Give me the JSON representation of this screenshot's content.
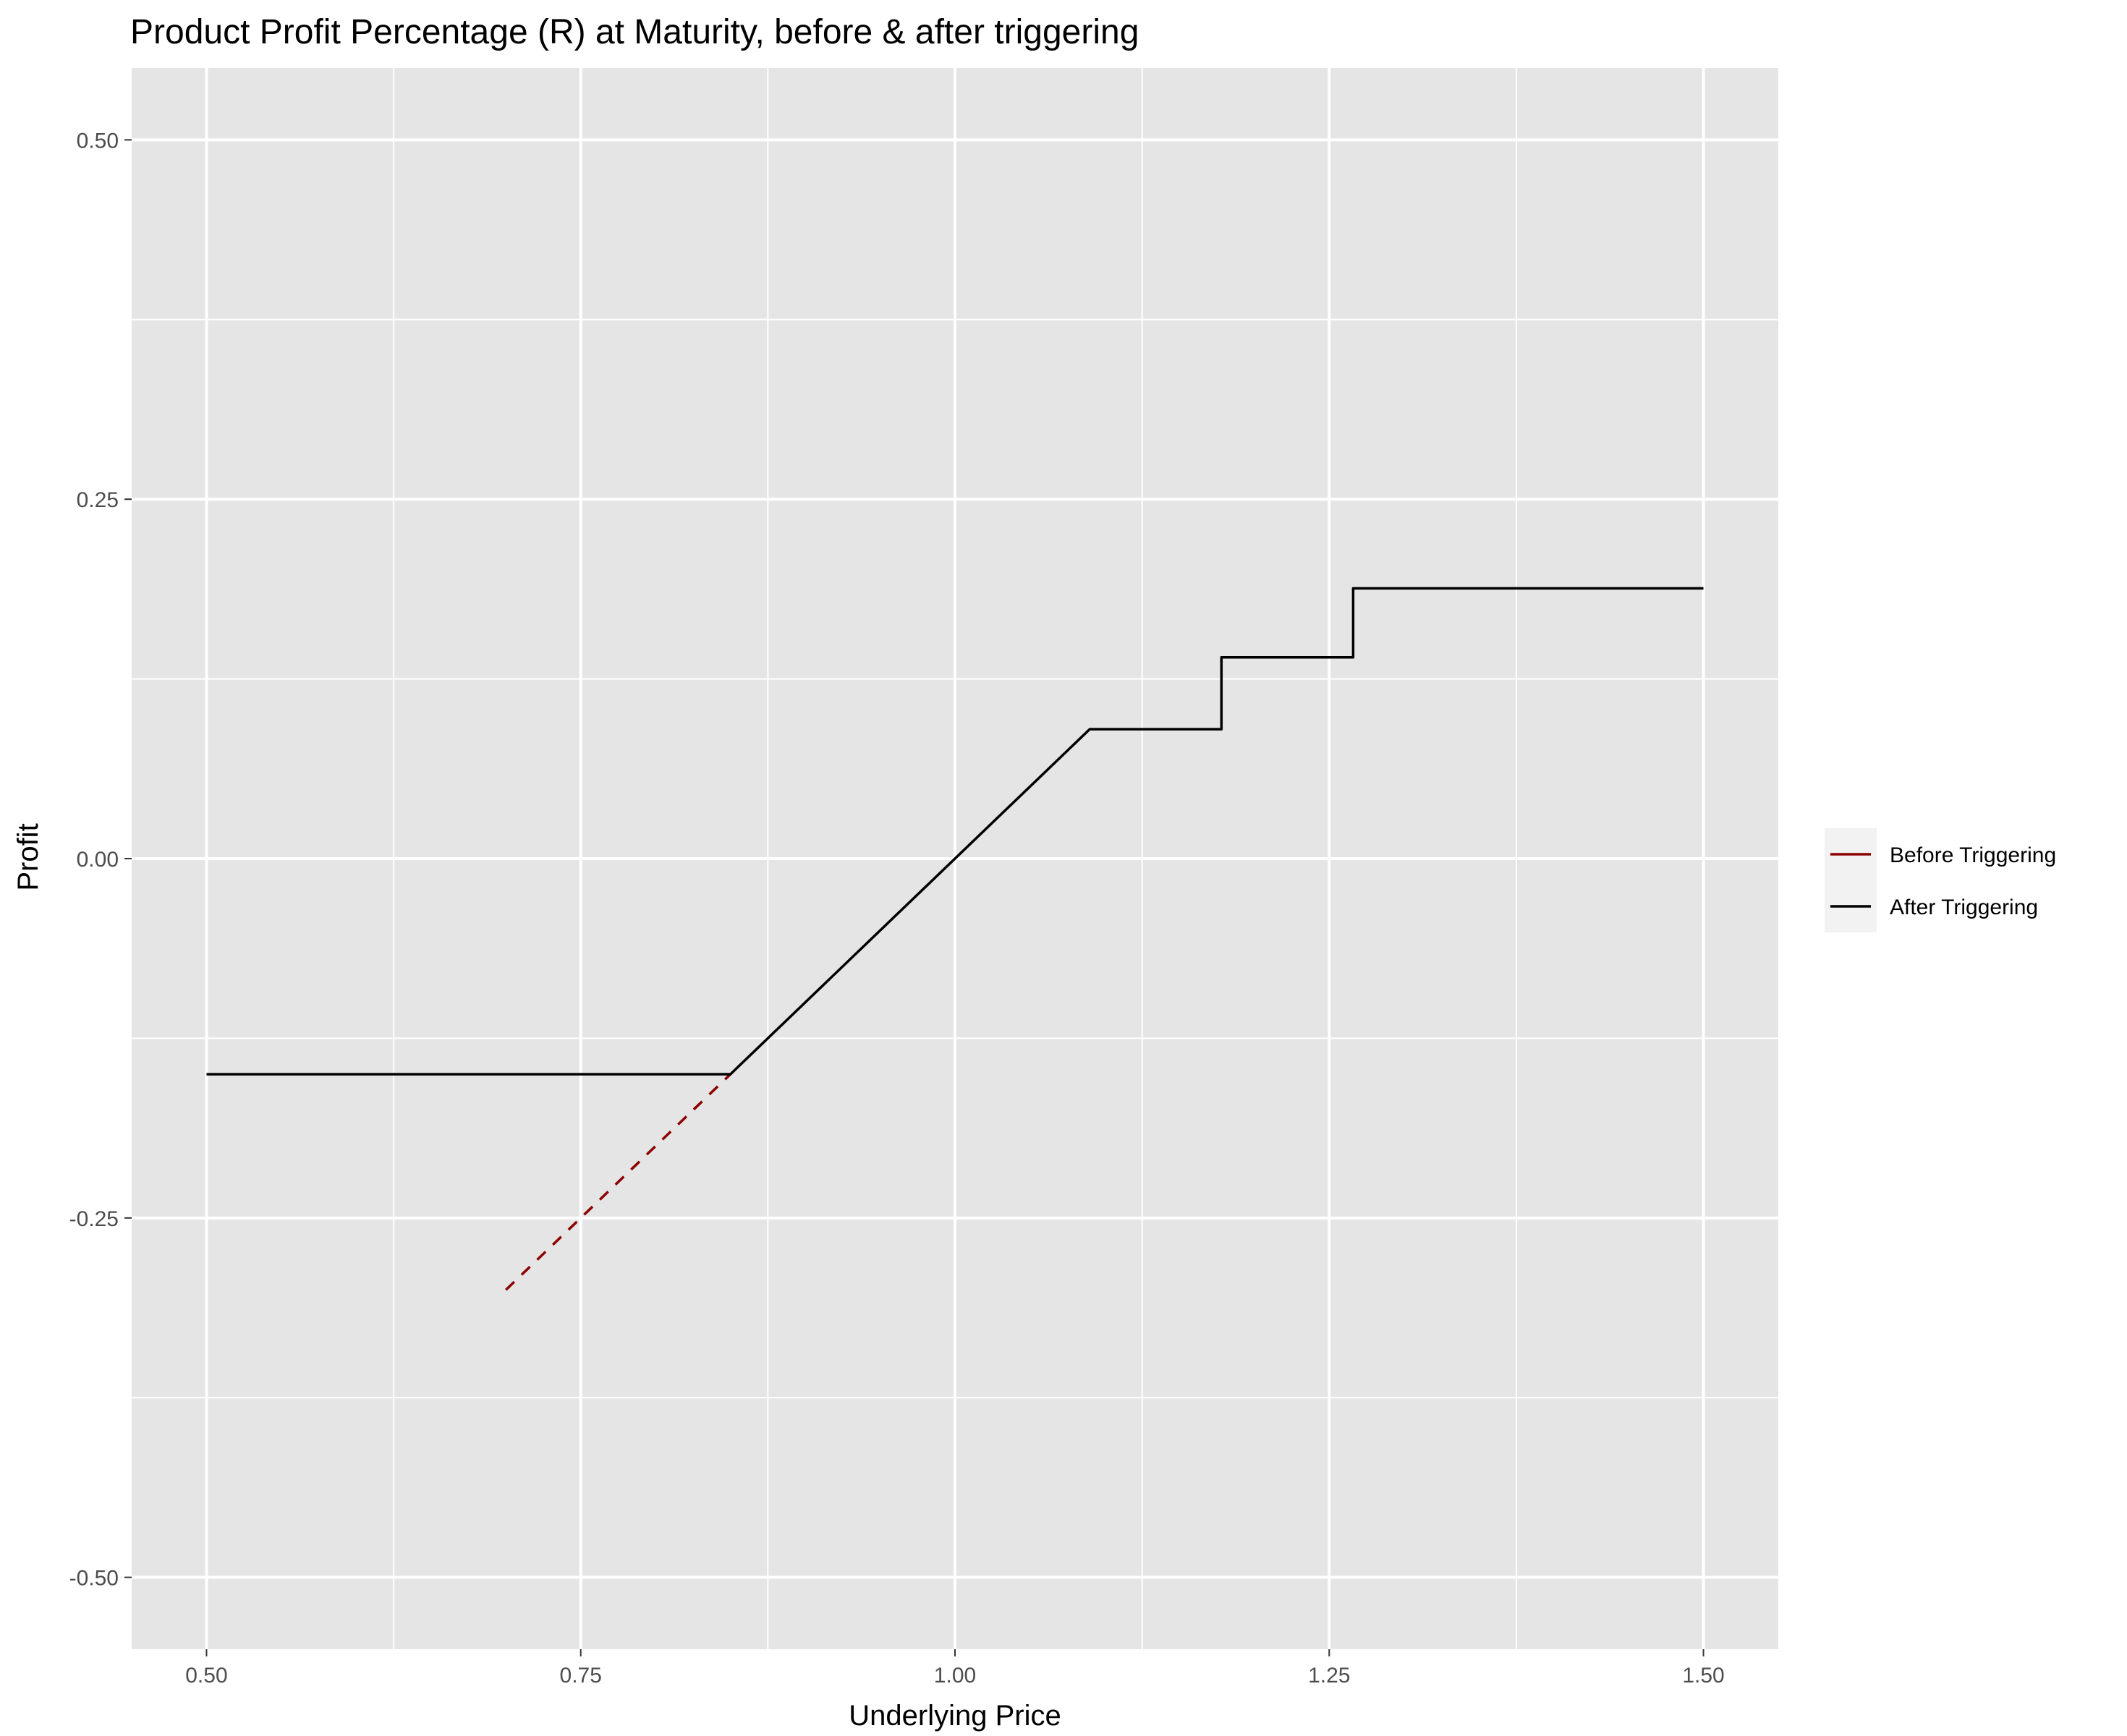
{
  "chart_data": {
    "type": "line",
    "title": "Product Profit Percentage (R) at Maturity, before & after triggering",
    "xlabel": "Underlying Price",
    "ylabel": "Profit",
    "xlim": [
      0.45,
      1.55
    ],
    "ylim": [
      -0.55,
      0.55
    ],
    "x_ticks": [
      0.5,
      0.75,
      1.0,
      1.25,
      1.5
    ],
    "x_tick_labels": [
      "0.50",
      "0.75",
      "1.00",
      "1.25",
      "1.50"
    ],
    "y_ticks": [
      -0.5,
      -0.25,
      0.0,
      0.25,
      0.5
    ],
    "y_tick_labels": [
      "-0.50",
      "-0.25",
      "0.00",
      "0.25",
      "0.50"
    ],
    "x_minor": [
      0.625,
      0.875,
      1.125,
      1.375
    ],
    "y_minor": [
      -0.375,
      -0.125,
      0.125,
      0.375
    ],
    "grid": true,
    "legend_position": "right",
    "series": [
      {
        "name": "Before Triggering",
        "color": "#8b0000",
        "dash": "dashed",
        "x": [
          0.7,
          0.85
        ],
        "y": [
          -0.3,
          -0.15
        ]
      },
      {
        "name": "After Triggering",
        "color": "#000000",
        "dash": "solid",
        "x": [
          0.5,
          0.85,
          1.09,
          1.178,
          1.178,
          1.266,
          1.266,
          1.5
        ],
        "y": [
          -0.15,
          -0.15,
          0.09,
          0.09,
          0.14,
          0.14,
          0.188,
          0.188
        ]
      }
    ]
  },
  "colors": {
    "panel_background": "#e5e5e5",
    "grid_line": "#ffffff",
    "legend_key_background": "#f2f2f2"
  }
}
